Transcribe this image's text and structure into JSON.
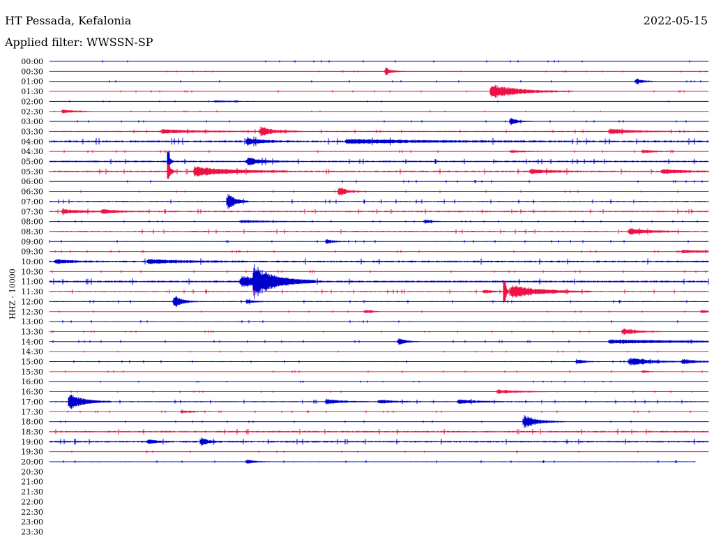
{
  "header": {
    "station": "HT Pessada, Kefalonia",
    "filter": "Applied filter: WWSSN-SP",
    "date": "2022-05-15"
  },
  "chart_data": {
    "type": "line",
    "title": "HT Pessada, Kefalonia",
    "subtitle": "Applied filter: WWSSN-SP",
    "ylabel": "HHZ - 10000",
    "xlabel": "",
    "date": "2022-05-15",
    "grid": false,
    "legend": "none",
    "colors": [
      "#0000cc",
      "#ee1144"
    ],
    "rows": [
      {
        "label": "00:00",
        "recorded": true,
        "noise": 0.5,
        "events": []
      },
      {
        "label": "00:30",
        "recorded": true,
        "noise": 0.4,
        "events": [
          {
            "t": 0.51,
            "amp": 6,
            "dur": 0.01
          }
        ]
      },
      {
        "label": "01:00",
        "recorded": true,
        "noise": 0.5,
        "events": [
          {
            "t": 0.89,
            "amp": 5,
            "dur": 0.01
          }
        ]
      },
      {
        "label": "01:30",
        "recorded": true,
        "noise": 0.5,
        "events": [
          {
            "t": 0.67,
            "amp": 11,
            "dur": 0.04
          }
        ]
      },
      {
        "label": "02:00",
        "recorded": true,
        "noise": 0.4,
        "events": [
          {
            "t": 0.25,
            "amp": 1.5,
            "dur": 0.03
          }
        ]
      },
      {
        "label": "02:30",
        "recorded": true,
        "noise": 0.4,
        "events": [
          {
            "t": 0.02,
            "amp": 3,
            "dur": 0.02
          }
        ]
      },
      {
        "label": "03:00",
        "recorded": true,
        "noise": 0.5,
        "events": [
          {
            "t": 0.7,
            "amp": 6,
            "dur": 0.01
          }
        ]
      },
      {
        "label": "03:30",
        "recorded": true,
        "noise": 0.8,
        "events": [
          {
            "t": 0.17,
            "amp": 3,
            "dur": 0.05
          },
          {
            "t": 0.32,
            "amp": 7,
            "dur": 0.02
          },
          {
            "t": 0.85,
            "amp": 4,
            "dur": 0.03
          }
        ]
      },
      {
        "label": "04:00",
        "recorded": true,
        "noise": 1.4,
        "events": [
          {
            "t": 0.3,
            "amp": 5,
            "dur": 0.02
          },
          {
            "t": 0.45,
            "amp": 3,
            "dur": 0.1
          }
        ]
      },
      {
        "label": "04:30",
        "recorded": true,
        "noise": 0.6,
        "events": [
          {
            "t": 0.7,
            "amp": 2,
            "dur": 0.02
          },
          {
            "t": 0.9,
            "amp": 2.5,
            "dur": 0.02
          }
        ]
      },
      {
        "label": "05:00",
        "recorded": true,
        "noise": 1.1,
        "events": [
          {
            "t": 0.18,
            "amp": 30,
            "dur": 0.002
          },
          {
            "t": 0.3,
            "amp": 6,
            "dur": 0.02
          }
        ]
      },
      {
        "label": "05:30",
        "recorded": true,
        "noise": 1.2,
        "events": [
          {
            "t": 0.18,
            "amp": 20,
            "dur": 0.003
          },
          {
            "t": 0.22,
            "amp": 7,
            "dur": 0.05
          },
          {
            "t": 0.73,
            "amp": 3,
            "dur": 0.03
          },
          {
            "t": 0.93,
            "amp": 3,
            "dur": 0.03
          }
        ]
      },
      {
        "label": "06:00",
        "recorded": true,
        "noise": 0.6,
        "events": []
      },
      {
        "label": "06:30",
        "recorded": true,
        "noise": 0.6,
        "events": [
          {
            "t": 0.44,
            "amp": 8,
            "dur": 0.01
          }
        ]
      },
      {
        "label": "07:00",
        "recorded": true,
        "noise": 0.9,
        "events": [
          {
            "t": 0.27,
            "amp": 14,
            "dur": 0.01
          }
        ]
      },
      {
        "label": "07:30",
        "recorded": true,
        "noise": 1.0,
        "events": [
          {
            "t": 0.02,
            "amp": 3,
            "dur": 0.03
          },
          {
            "t": 0.08,
            "amp": 3,
            "dur": 0.02
          }
        ]
      },
      {
        "label": "08:00",
        "recorded": true,
        "noise": 0.5,
        "events": [
          {
            "t": 0.29,
            "amp": 2,
            "dur": 0.05
          },
          {
            "t": 0.57,
            "amp": 3,
            "dur": 0.01
          }
        ]
      },
      {
        "label": "08:30",
        "recorded": true,
        "noise": 1.0,
        "events": [
          {
            "t": 0.88,
            "amp": 4,
            "dur": 0.03
          }
        ]
      },
      {
        "label": "09:00",
        "recorded": true,
        "noise": 0.6,
        "events": [
          {
            "t": 0.42,
            "amp": 4,
            "dur": 0.01
          }
        ]
      },
      {
        "label": "09:30",
        "recorded": true,
        "noise": 0.6,
        "events": [
          {
            "t": 0.96,
            "amp": 2.5,
            "dur": 0.04
          }
        ]
      },
      {
        "label": "10:00",
        "recorded": true,
        "noise": 1.3,
        "events": [
          {
            "t": 0.01,
            "amp": 3,
            "dur": 0.02
          },
          {
            "t": 0.15,
            "amp": 3,
            "dur": 0.05
          }
        ]
      },
      {
        "label": "10:30",
        "recorded": true,
        "noise": 0.6,
        "events": []
      },
      {
        "label": "11:00",
        "recorded": true,
        "noise": 1.3,
        "events": [
          {
            "t": 0.29,
            "amp": 8,
            "dur": 0.04
          },
          {
            "t": 0.31,
            "amp": 20,
            "dur": 0.03
          }
        ]
      },
      {
        "label": "11:30",
        "recorded": true,
        "noise": 0.9,
        "events": [
          {
            "t": 0.69,
            "amp": 35,
            "dur": 0.002
          },
          {
            "t": 0.7,
            "amp": 10,
            "dur": 0.04
          },
          {
            "t": 0.66,
            "amp": 3,
            "dur": 0.01
          }
        ]
      },
      {
        "label": "12:00",
        "recorded": true,
        "noise": 0.7,
        "events": [
          {
            "t": 0.19,
            "amp": 10,
            "dur": 0.01
          },
          {
            "t": 0.3,
            "amp": 3,
            "dur": 0.01
          }
        ]
      },
      {
        "label": "12:30",
        "recorded": true,
        "noise": 0.5,
        "events": [
          {
            "t": 0.48,
            "amp": 3,
            "dur": 0.01
          },
          {
            "t": 0.99,
            "amp": 2.5,
            "dur": 0.01
          }
        ]
      },
      {
        "label": "13:00",
        "recorded": true,
        "noise": 0.6,
        "events": []
      },
      {
        "label": "13:30",
        "recorded": true,
        "noise": 0.5,
        "events": [
          {
            "t": 0.87,
            "amp": 5,
            "dur": 0.02
          }
        ]
      },
      {
        "label": "14:00",
        "recorded": true,
        "noise": 0.6,
        "events": [
          {
            "t": 0.53,
            "amp": 5,
            "dur": 0.01
          },
          {
            "t": 0.85,
            "amp": 3,
            "dur": 0.12
          }
        ]
      },
      {
        "label": "14:30",
        "recorded": true,
        "noise": 0.4,
        "events": []
      },
      {
        "label": "15:00",
        "recorded": true,
        "noise": 0.6,
        "events": [
          {
            "t": 0.8,
            "amp": 4,
            "dur": 0.01
          },
          {
            "t": 0.88,
            "amp": 6,
            "dur": 0.03
          },
          {
            "t": 0.96,
            "amp": 3,
            "dur": 0.03
          }
        ]
      },
      {
        "label": "15:30",
        "recorded": true,
        "noise": 0.5,
        "events": [
          {
            "t": 0.9,
            "amp": 2,
            "dur": 0.01
          }
        ]
      },
      {
        "label": "16:00",
        "recorded": true,
        "noise": 0.4,
        "events": []
      },
      {
        "label": "16:30",
        "recorded": true,
        "noise": 0.5,
        "events": [
          {
            "t": 0.68,
            "amp": 3,
            "dur": 0.03
          }
        ]
      },
      {
        "label": "17:00",
        "recorded": true,
        "noise": 0.8,
        "events": [
          {
            "t": 0.03,
            "amp": 12,
            "dur": 0.02
          },
          {
            "t": 0.42,
            "amp": 4,
            "dur": 0.02
          },
          {
            "t": 0.5,
            "amp": 3,
            "dur": 0.02
          },
          {
            "t": 0.62,
            "amp": 3,
            "dur": 0.03
          }
        ]
      },
      {
        "label": "17:30",
        "recorded": true,
        "noise": 0.5,
        "events": [
          {
            "t": 0.2,
            "amp": 2,
            "dur": 0.02
          }
        ]
      },
      {
        "label": "18:00",
        "recorded": true,
        "noise": 0.5,
        "events": [
          {
            "t": 0.72,
            "amp": 10,
            "dur": 0.02
          }
        ]
      },
      {
        "label": "18:30",
        "recorded": true,
        "noise": 1.2,
        "events": []
      },
      {
        "label": "19:00",
        "recorded": true,
        "noise": 1.2,
        "events": [
          {
            "t": 0.23,
            "amp": 6,
            "dur": 0.01
          },
          {
            "t": 0.15,
            "amp": 4,
            "dur": 0.01
          }
        ]
      },
      {
        "label": "19:30",
        "recorded": true,
        "noise": 0.5,
        "events": []
      },
      {
        "label": "20:00",
        "recorded": true,
        "noise": 0.6,
        "events": [
          {
            "t": 0.3,
            "amp": 4,
            "dur": 0.01
          }
        ],
        "end": 0.98
      },
      {
        "label": "20:30",
        "recorded": false
      },
      {
        "label": "21:00",
        "recorded": false
      },
      {
        "label": "21:30",
        "recorded": false
      },
      {
        "label": "22:00",
        "recorded": false
      },
      {
        "label": "22:30",
        "recorded": false
      },
      {
        "label": "23:00",
        "recorded": false
      },
      {
        "label": "23:30",
        "recorded": false
      }
    ]
  }
}
